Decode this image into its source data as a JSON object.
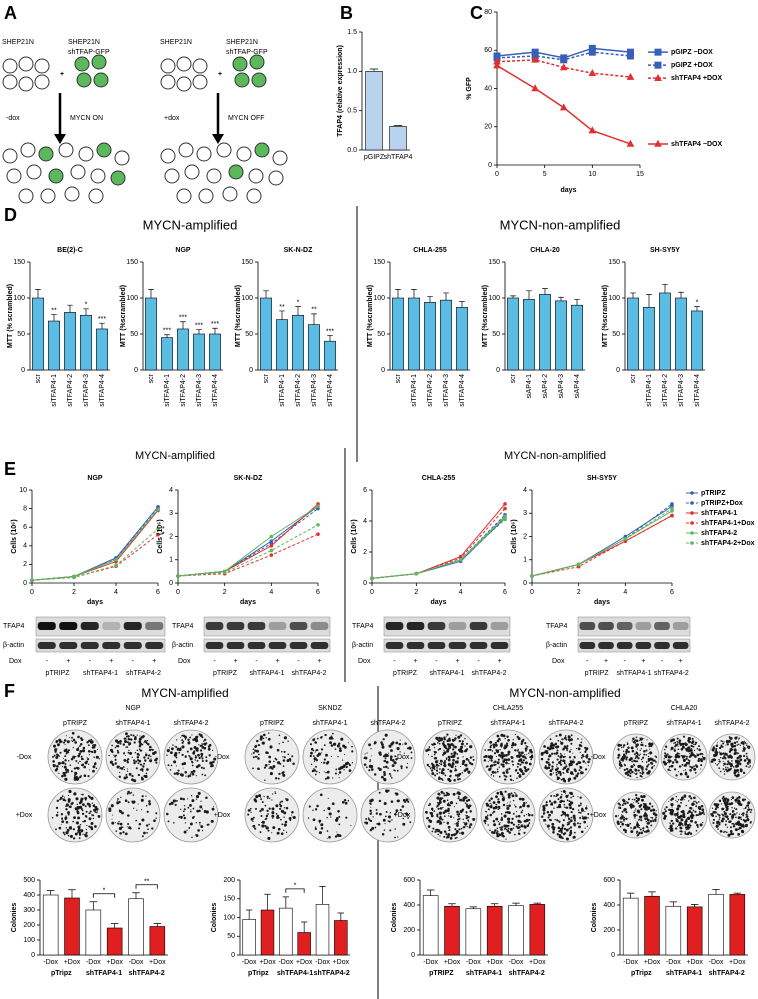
{
  "panels": [
    "A",
    "B",
    "C",
    "D",
    "E",
    "F"
  ],
  "groups": [
    "MYCN-amplified",
    "MYCN-non-amplified"
  ],
  "diagram": {
    "cell_line": "SHEP21N",
    "sh_line": "shTFAP-GFP",
    "plus": "+",
    "left": {
      "condition": "-dox",
      "state": "MYCN ON"
    },
    "right": {
      "condition": "+dox",
      "state": "MYCN OFF"
    }
  },
  "blot": {
    "rows": [
      "TFAP4",
      "β-actin"
    ],
    "dox_label": "Dox",
    "dox": [
      "-",
      "+",
      "-",
      "+",
      "-",
      "+"
    ],
    "groups": [
      "pTRIPZ",
      "shTFAP4-1",
      "shTFAP4-2"
    ]
  },
  "colonies": {
    "lines": [
      "NGP",
      "SKNDZ",
      "CHLA255",
      "CHLA20"
    ],
    "columns": [
      "pTRIPZ",
      "shTFAP4-1",
      "shTFAP4-2"
    ],
    "rows": [
      "-Dox",
      "+Dox"
    ]
  },
  "chart_data": [
    {
      "type": "bar",
      "ylabel": "TFAP4 (relative expression)",
      "categories": [
        "pGIPZ",
        "shTFAP4"
      ],
      "values": [
        1.0,
        0.3
      ],
      "errors": [
        0.03,
        0.01
      ],
      "color": "#b9d3ee",
      "ylim": [
        0,
        1.5
      ],
      "yticks": [
        {
          "value": 0,
          "label": "0.0"
        },
        0.5,
        {
          "value": 1,
          "label": "1.0"
        },
        1.5
      ]
    },
    {
      "type": "line",
      "ylabel": "% GFP",
      "xlabel": "days",
      "x": [
        0,
        4,
        7,
        10,
        14
      ],
      "xlim": [
        0,
        15
      ],
      "xticks": [
        0,
        5,
        10,
        15
      ],
      "ylim": [
        0,
        80
      ],
      "yticks": [
        0,
        20,
        40,
        60,
        80
      ],
      "legend": "right",
      "series": [
        {
          "name": "pGIPZ −DOX",
          "color": "#3a5fb8",
          "dash": false,
          "marker": "square",
          "values": [
            57,
            59,
            56,
            61,
            59
          ]
        },
        {
          "name": "pGIPZ +DOX",
          "color": "#3a5fb8",
          "dash": true,
          "marker": "square",
          "values": [
            56,
            57,
            55,
            59,
            57
          ]
        },
        {
          "name": "shTFAP4 +DOX",
          "color": "#e03030",
          "dash": true,
          "marker": "triangle",
          "values": [
            54,
            55,
            51,
            48,
            46
          ]
        },
        {
          "name": "shTFAP4 −DOX",
          "color": "#e03030",
          "dash": false,
          "marker": "triangle",
          "values": [
            52,
            40,
            30,
            18,
            11
          ]
        }
      ]
    },
    {
      "type": "bar",
      "title": "BE(2)-C",
      "ylabel": "MTT (% scrambled)",
      "categories": [
        "scr",
        "siTFAP4-1",
        "siTFAP4-2",
        "siTFAP4-3",
        "siTFAP4-4"
      ],
      "values": [
        100,
        68,
        80,
        76,
        57
      ],
      "errors": [
        12,
        9,
        10,
        9,
        8
      ],
      "color": "#5bbde4",
      "ylim": [
        0,
        150
      ],
      "yticks": [
        0,
        50,
        100,
        150
      ],
      "significance": [
        null,
        "**",
        null,
        "*",
        "***"
      ]
    },
    {
      "type": "bar",
      "title": "NGP",
      "ylabel": "MTT (%scrambled)",
      "categories": [
        "scr",
        "siTFAP4-1",
        "siTFAP4-2",
        "siTFAP4-3",
        "siTFAP4-4"
      ],
      "values": [
        100,
        45,
        57,
        50,
        50
      ],
      "errors": [
        12,
        4,
        10,
        6,
        8
      ],
      "color": "#5bbde4",
      "ylim": [
        0,
        150
      ],
      "yticks": [
        0,
        50,
        100,
        150
      ],
      "significance": [
        null,
        "***",
        "***",
        "***",
        "***"
      ]
    },
    {
      "type": "bar",
      "title": "SK-N-DZ",
      "ylabel": "MTT (%scrambled)",
      "categories": [
        "scr",
        "siTFAP4-1",
        "siTFAP4-2",
        "siTFAP4-3",
        "siTFAP4-4"
      ],
      "values": [
        100,
        70,
        76,
        63,
        40
      ],
      "errors": [
        10,
        12,
        12,
        15,
        8
      ],
      "color": "#5bbde4",
      "ylim": [
        0,
        150
      ],
      "yticks": [
        0,
        50,
        100,
        150
      ],
      "significance": [
        null,
        "**",
        "*",
        "**",
        "***"
      ]
    },
    {
      "type": "bar",
      "title": "CHLA-255",
      "ylabel": "MTT (%scrambled)",
      "categories": [
        "scr",
        "siTFAP4-1",
        "siTFAP4-2",
        "siTFAP4-3",
        "siTFAP4-4"
      ],
      "values": [
        100,
        100,
        94,
        97,
        87
      ],
      "errors": [
        12,
        12,
        8,
        10,
        8
      ],
      "color": "#5bbde4",
      "ylim": [
        0,
        150
      ],
      "yticks": [
        0,
        50,
        100,
        150
      ]
    },
    {
      "type": "bar",
      "title": "CHLA-20",
      "ylabel": "MTT (%scrambled)",
      "categories": [
        "scr",
        "siAP4-1",
        "siAP4-2",
        "siAP4-3",
        "siAP4-4"
      ],
      "values": [
        100,
        98,
        105,
        96,
        90
      ],
      "errors": [
        3,
        12,
        8,
        5,
        8
      ],
      "color": "#5bbde4",
      "ylim": [
        0,
        150
      ],
      "yticks": [
        0,
        50,
        100,
        150
      ]
    },
    {
      "type": "bar",
      "title": "SH-SY5Y",
      "ylabel": "MTT (%scrambled)",
      "categories": [
        "scr",
        "siTFAP4-1",
        "siTFAP4-2",
        "siTFAP4-3",
        "siTFAP4-4"
      ],
      "values": [
        100,
        87,
        107,
        100,
        82
      ],
      "errors": [
        7,
        18,
        12,
        8,
        6
      ],
      "color": "#5bbde4",
      "ylim": [
        0,
        150
      ],
      "yticks": [
        0,
        50,
        100,
        150
      ],
      "significance": [
        null,
        null,
        null,
        null,
        "*"
      ]
    },
    {
      "type": "line",
      "title": "NGP",
      "ylabel": "Cells (10⁶)",
      "xlabel": "days",
      "x": [
        0,
        2,
        4,
        6
      ],
      "xlim": [
        0,
        6
      ],
      "xticks": [
        0,
        2,
        4,
        6
      ],
      "ylim": [
        0,
        10
      ],
      "yticks": [
        0,
        2,
        4,
        6,
        8,
        10
      ],
      "series": [
        {
          "color": "#3a5fb8",
          "dash": false,
          "marker": "circle",
          "values": [
            0.3,
            0.7,
            2.7,
            8.2
          ]
        },
        {
          "color": "#3a5fb8",
          "dash": true,
          "marker": "circle",
          "values": [
            0.3,
            0.7,
            2.6,
            8.0
          ]
        },
        {
          "color": "#e03030",
          "dash": false,
          "marker": "circle",
          "values": [
            0.3,
            0.7,
            2.3,
            7.8
          ]
        },
        {
          "color": "#e03030",
          "dash": true,
          "marker": "circle",
          "values": [
            0.3,
            0.6,
            1.8,
            5.2
          ],
          "significance": [
            null,
            null,
            null,
            "*"
          ]
        },
        {
          "color": "#5cb85c",
          "dash": false,
          "marker": "circle",
          "values": [
            0.3,
            0.7,
            2.5,
            7.9
          ]
        },
        {
          "color": "#5cb85c",
          "dash": true,
          "marker": "circle",
          "values": [
            0.3,
            0.6,
            1.9,
            5.8
          ],
          "significance": [
            null,
            null,
            null,
            "*"
          ]
        }
      ]
    },
    {
      "type": "line",
      "title": "SK-N-DZ",
      "ylabel": "Cells (10⁶)",
      "xlabel": "days",
      "x": [
        0,
        2,
        4,
        6
      ],
      "xlim": [
        0,
        6
      ],
      "xticks": [
        0,
        2,
        4,
        6
      ],
      "ylim": [
        0,
        4
      ],
      "yticks": [
        0,
        1,
        2,
        3,
        4
      ],
      "series": [
        {
          "color": "#3a5fb8",
          "dash": false,
          "marker": "circle",
          "values": [
            0.3,
            0.5,
            1.8,
            3.3
          ]
        },
        {
          "color": "#3a5fb8",
          "dash": true,
          "marker": "circle",
          "values": [
            0.3,
            0.5,
            1.7,
            3.2
          ]
        },
        {
          "color": "#e03030",
          "dash": false,
          "marker": "circle",
          "values": [
            0.3,
            0.5,
            1.6,
            3.4
          ]
        },
        {
          "color": "#e03030",
          "dash": true,
          "marker": "circle",
          "values": [
            0.3,
            0.4,
            1.2,
            2.1
          ]
        },
        {
          "color": "#5cb85c",
          "dash": false,
          "marker": "circle",
          "values": [
            0.3,
            0.5,
            2.0,
            3.3
          ]
        },
        {
          "color": "#5cb85c",
          "dash": true,
          "marker": "circle",
          "values": [
            0.3,
            0.45,
            1.4,
            2.5
          ]
        }
      ]
    },
    {
      "type": "line",
      "title": "CHLA-255",
      "ylabel": "Cells (10⁶)",
      "xlabel": "days",
      "x": [
        0,
        2,
        4,
        6
      ],
      "xlim": [
        0,
        6
      ],
      "xticks": [
        0,
        2,
        4,
        6
      ],
      "ylim": [
        0,
        6
      ],
      "yticks": [
        0,
        2,
        4,
        6
      ],
      "series": [
        {
          "color": "#3a5fb8",
          "dash": false,
          "marker": "circle",
          "values": [
            0.3,
            0.6,
            1.4,
            4.2
          ]
        },
        {
          "color": "#3a5fb8",
          "dash": true,
          "marker": "circle",
          "values": [
            0.3,
            0.6,
            1.5,
            4.4
          ]
        },
        {
          "color": "#e03030",
          "dash": false,
          "marker": "circle",
          "values": [
            0.3,
            0.6,
            1.7,
            5.1
          ]
        },
        {
          "color": "#e03030",
          "dash": true,
          "marker": "circle",
          "values": [
            0.3,
            0.6,
            1.6,
            4.8
          ]
        },
        {
          "color": "#5cb85c",
          "dash": false,
          "marker": "circle",
          "values": [
            0.3,
            0.6,
            1.5,
            4.3
          ]
        },
        {
          "color": "#5cb85c",
          "dash": true,
          "marker": "circle",
          "values": [
            0.3,
            0.6,
            1.5,
            4.1
          ]
        }
      ]
    },
    {
      "type": "line",
      "title": "SH-SY5Y",
      "ylabel": "Cells (10⁶)",
      "xlabel": "days",
      "x": [
        0,
        2,
        4,
        6
      ],
      "xlim": [
        0,
        6
      ],
      "xticks": [
        0,
        2,
        4,
        6
      ],
      "ylim": [
        0,
        4
      ],
      "yticks": [
        0,
        1,
        2,
        3,
        4
      ],
      "legend": "right",
      "series": [
        {
          "name": "pTRIPZ",
          "color": "#3a5fb8",
          "dash": false,
          "marker": "circle",
          "values": [
            0.3,
            0.8,
            2.0,
            3.3
          ]
        },
        {
          "name": "pTRIPZ+Dox",
          "color": "#3a5fb8",
          "dash": true,
          "marker": "circle",
          "values": [
            0.3,
            0.8,
            1.9,
            3.4
          ]
        },
        {
          "name": "shTFAP4-1",
          "color": "#e03030",
          "dash": false,
          "marker": "circle",
          "values": [
            0.3,
            0.8,
            1.8,
            2.9
          ]
        },
        {
          "name": "shTFAP4-1+Dox",
          "color": "#e03030",
          "dash": true,
          "marker": "circle",
          "values": [
            0.3,
            0.7,
            1.8,
            2.9
          ]
        },
        {
          "name": "shTFAP4-2",
          "color": "#5cb85c",
          "dash": false,
          "marker": "circle",
          "values": [
            0.3,
            0.8,
            1.9,
            3.1
          ]
        },
        {
          "name": "shTFAP4-2+Dox",
          "color": "#5cb85c",
          "dash": true,
          "marker": "circle",
          "values": [
            0.3,
            0.8,
            1.9,
            3.2
          ]
        }
      ]
    },
    {
      "type": "bar",
      "ylabel": "Colonies",
      "categories": [
        "-Dox",
        "+Dox",
        "-Dox",
        "+Dox",
        "-Dox",
        "+Dox"
      ],
      "groups": [
        "pTripz",
        "shTFAP4-1",
        "shTFAP4-2"
      ],
      "colors": [
        "#ffffff",
        "#e02020",
        "#ffffff",
        "#e02020",
        "#ffffff",
        "#e02020"
      ],
      "values": [
        400,
        380,
        300,
        180,
        375,
        190
      ],
      "errors": [
        30,
        55,
        55,
        30,
        40,
        20
      ],
      "ylim": [
        0,
        500
      ],
      "yticks": [
        0,
        100,
        200,
        300,
        400,
        500
      ],
      "significance": [
        null,
        null,
        null,
        "*",
        null,
        "**"
      ]
    },
    {
      "type": "bar",
      "ylabel": "Colonies",
      "categories": [
        "-Dox",
        "+Dox",
        "-Dox",
        "+Dox",
        "-Dox",
        "+Dox"
      ],
      "groups": [
        "pTripz",
        "shTFAP4-1",
        "shTFAP4-2"
      ],
      "colors": [
        "#ffffff",
        "#e02020",
        "#ffffff",
        "#e02020",
        "#ffffff",
        "#e02020"
      ],
      "values": [
        95,
        120,
        125,
        60,
        135,
        92
      ],
      "errors": [
        25,
        42,
        30,
        28,
        48,
        20
      ],
      "ylim": [
        0,
        200
      ],
      "yticks": [
        0,
        50,
        100,
        150,
        200
      ],
      "significance": [
        null,
        null,
        null,
        "*",
        null,
        null
      ]
    },
    {
      "type": "bar",
      "ylabel": "Colonies",
      "categories": [
        "-Dox",
        "+Dox",
        "-Dox",
        "+Dox",
        "-Dox",
        "+Dox"
      ],
      "groups": [
        "pTRIPZ",
        "shTFAP4-1",
        "shTFAP4-2"
      ],
      "colors": [
        "#ffffff",
        "#e02020",
        "#ffffff",
        "#e02020",
        "#ffffff",
        "#e02020"
      ],
      "values": [
        475,
        390,
        370,
        390,
        395,
        405
      ],
      "errors": [
        45,
        20,
        15,
        20,
        20,
        10
      ],
      "ylim": [
        0,
        600
      ],
      "yticks": [
        0,
        200,
        400,
        600
      ]
    },
    {
      "type": "bar",
      "ylabel": "Colonies",
      "categories": [
        "-Dox",
        "+Dox",
        "-Dox",
        "+Dox",
        "-Dox",
        "+Dox"
      ],
      "groups": [
        "pTripz",
        "shTFAP4-1",
        "shTFAP4-2"
      ],
      "colors": [
        "#ffffff",
        "#e02020",
        "#ffffff",
        "#e02020",
        "#ffffff",
        "#e02020"
      ],
      "values": [
        455,
        470,
        390,
        385,
        485,
        485
      ],
      "errors": [
        40,
        35,
        35,
        20,
        40,
        10
      ],
      "ylim": [
        0,
        600
      ],
      "yticks": [
        0,
        200,
        400,
        600
      ]
    }
  ]
}
